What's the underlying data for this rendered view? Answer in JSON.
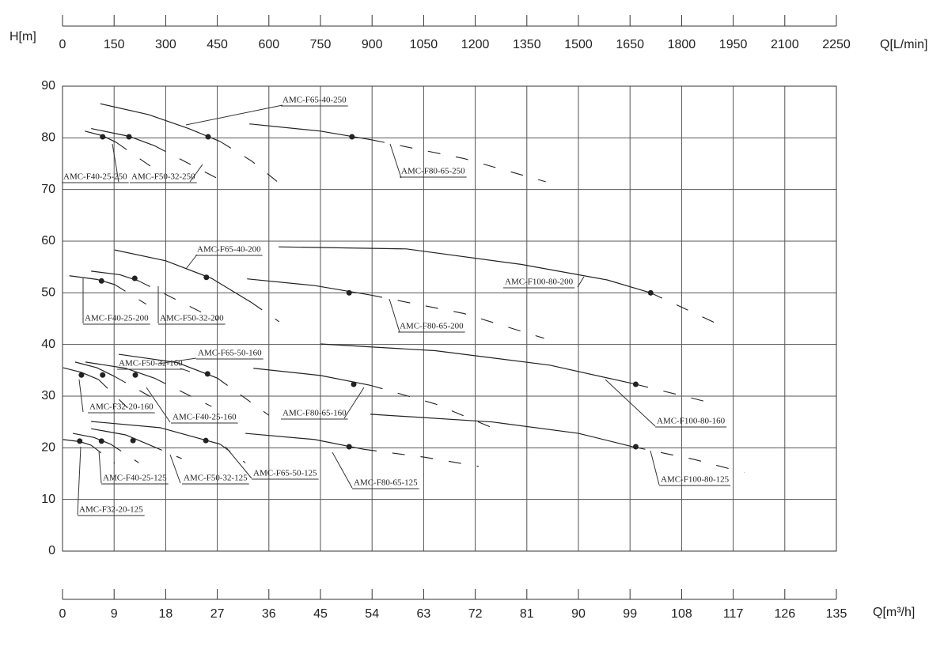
{
  "chart_data": {
    "type": "line",
    "y_label": "H[m]",
    "x_label": "Q[m³/h]",
    "x2_label": "Q[L/min]",
    "xlim": [
      0,
      135
    ],
    "xticks": [
      0,
      9,
      18,
      27,
      36,
      45,
      54,
      63,
      72,
      81,
      90,
      99,
      108,
      117,
      126,
      135
    ],
    "x2lim": [
      0,
      2250
    ],
    "x2ticks": [
      0,
      150,
      300,
      450,
      600,
      750,
      900,
      1050,
      1200,
      1350,
      1500,
      1650,
      1800,
      1950,
      2100,
      2250
    ],
    "ylim": [
      0,
      90
    ],
    "yticks": [
      0,
      10,
      20,
      30,
      40,
      50,
      60,
      70,
      80,
      90
    ],
    "grid": true,
    "color": "#222222",
    "series": [
      {
        "name": "AMC-F40-25-250",
        "x": [
          3.9,
          7,
          9.4
        ],
        "values": [
          81.3,
          80.4,
          79.1
        ],
        "dash_x": [
          9.4,
          16
        ],
        "dash_values": [
          79.1,
          74
        ],
        "duty_x": 7,
        "duty_y": 80.2
      },
      {
        "name": "AMC-F50-32-250",
        "x": [
          5,
          11.6,
          16
        ],
        "values": [
          81.8,
          80.3,
          78.5
        ],
        "dash_x": [
          16,
          29
        ],
        "dash_values": [
          78.5,
          71
        ],
        "duty_x": 11.6,
        "duty_y": 80.2
      },
      {
        "name": "AMC-F65-40-250",
        "x": [
          6.6,
          15,
          22,
          27.5
        ],
        "values": [
          86.6,
          84.5,
          81.8,
          79.3
        ],
        "dash_x": [
          27.5,
          33,
          37.5
        ],
        "dash_values": [
          79.3,
          75.5,
          71.5
        ],
        "duty_x": 25.4,
        "duty_y": 80.2
      },
      {
        "name": "AMC-F80-65-250",
        "x": [
          32.6,
          45,
          54
        ],
        "values": [
          82.7,
          81.3,
          79.6
        ],
        "dash_x": [
          54,
          70,
          84.3
        ],
        "dash_values": [
          79.6,
          76,
          71.5
        ],
        "duty_x": 50.5,
        "duty_y": 80.2
      },
      {
        "name": "AMC-F40-25-200",
        "x": [
          1.2,
          6,
          9.1
        ],
        "values": [
          53.3,
          52.6,
          51.6
        ],
        "dash_x": [
          9.1,
          14.6
        ],
        "dash_values": [
          51.6,
          47.8
        ],
        "duty_x": 6.8,
        "duty_y": 52.3
      },
      {
        "name": "AMC-F50-32-200",
        "x": [
          5,
          10,
          13.3
        ],
        "values": [
          54.2,
          53.5,
          52.3
        ],
        "dash_x": [
          13.3,
          27
        ],
        "dash_values": [
          52.3,
          44.7
        ],
        "duty_x": 12.6,
        "duty_y": 52.8
      },
      {
        "name": "AMC-F65-40-200",
        "x": [
          9.1,
          18,
          26,
          33
        ],
        "values": [
          58.3,
          56.2,
          52.8,
          48.1
        ],
        "dash_x": [
          33,
          37.8
        ],
        "dash_values": [
          48.1,
          44.4
        ],
        "duty_x": 25.1,
        "duty_y": 53
      },
      {
        "name": "AMC-F80-65-200",
        "x": [
          32.2,
          44,
          53.6
        ],
        "values": [
          52.7,
          51.4,
          49.6
        ],
        "dash_x": [
          53.6,
          70,
          84
        ],
        "dash_values": [
          49.6,
          46,
          41.2
        ],
        "duty_x": 50,
        "duty_y": 50
      },
      {
        "name": "AMC-F100-80-200",
        "x": [
          37.7,
          60,
          80,
          95,
          102.6
        ],
        "values": [
          58.9,
          58.5,
          55.5,
          52.5,
          50
        ],
        "dash_x": [
          102.6,
          115
        ],
        "dash_values": [
          50,
          43.6
        ],
        "duty_x": 102.6,
        "duty_y": 50
      },
      {
        "name": "AMC-F32-20-160",
        "x": [
          0.1,
          3.3,
          6.3
        ],
        "values": [
          35.5,
          34.6,
          33.2
        ],
        "dash_x": [
          6.3,
          11.2
        ],
        "dash_values": [
          33.2,
          27.9
        ],
        "duty_x": 3.3,
        "duty_y": 34.1
      },
      {
        "name": "AMC-F40-25-160",
        "x": [
          2.2,
          6,
          9.1
        ],
        "values": [
          36.6,
          35.5,
          33.8
        ],
        "dash_x": [
          9.1,
          17.4
        ],
        "dash_values": [
          33.8,
          28.6
        ],
        "duty_x": 7,
        "duty_y": 34.1
      },
      {
        "name": "AMC-F50-32-160",
        "x": [
          4,
          11,
          16
        ],
        "values": [
          36.6,
          35.4,
          33.5
        ],
        "dash_x": [
          16,
          26
        ],
        "dash_values": [
          33.5,
          28
        ],
        "duty_x": 12.7,
        "duty_y": 34.1
      },
      {
        "name": "AMC-F65-50-160",
        "x": [
          9.8,
          20,
          27
        ],
        "values": [
          38.1,
          36.5,
          33.5
        ],
        "dash_x": [
          27,
          36
        ],
        "dash_values": [
          33.5,
          26.3
        ],
        "duty_x": 25.3,
        "duty_y": 34.3
      },
      {
        "name": "AMC-F80-65-160",
        "x": [
          33.3,
          45,
          53.7
        ],
        "values": [
          35.4,
          34,
          32.1
        ],
        "dash_x": [
          53.7,
          65,
          74.7
        ],
        "dash_values": [
          32.1,
          28.5,
          24
        ],
        "duty_x": 50.8,
        "duty_y": 32.3
      },
      {
        "name": "AMC-F100-80-160",
        "x": [
          45,
          65,
          85,
          100
        ],
        "values": [
          40.1,
          38.8,
          36,
          32.3
        ],
        "dash_x": [
          100,
          112.4
        ],
        "dash_values": [
          32.3,
          28.9
        ],
        "duty_x": 100,
        "duty_y": 32.3
      },
      {
        "name": "AMC-F32-20-125",
        "x": [
          0.1,
          3,
          5
        ],
        "values": [
          21.6,
          21.2,
          20.5
        ],
        "dash_x": [
          5,
          9.1
        ],
        "dash_values": [
          20.5,
          17
        ],
        "duty_x": 3,
        "duty_y": 21.3
      },
      {
        "name": "AMC-F40-25-125",
        "x": [
          1.8,
          5.5,
          8.4
        ],
        "values": [
          22.8,
          22,
          20.7
        ],
        "dash_x": [
          8.4,
          13.3
        ],
        "dash_values": [
          20.7,
          17.1
        ],
        "duty_x": 6.8,
        "duty_y": 21.3
      },
      {
        "name": "AMC-F50-32-125",
        "x": [
          5,
          11,
          15.3
        ],
        "values": [
          23.7,
          22.5,
          20.5
        ],
        "dash_x": [
          15.3,
          20.8
        ],
        "dash_values": [
          20.5,
          17.9
        ],
        "duty_x": 12.3,
        "duty_y": 21.4
      },
      {
        "name": "AMC-F65-50-125",
        "x": [
          5,
          17,
          27.5
        ],
        "values": [
          25.1,
          23.9,
          20.7
        ],
        "dash_x": [
          27.5,
          31.9
        ],
        "dash_values": [
          20.7,
          17.1
        ],
        "duty_x": 25,
        "duty_y": 21.4
      },
      {
        "name": "AMC-F80-65-125",
        "x": [
          31.9,
          44,
          52.6
        ],
        "values": [
          22.8,
          21.6,
          19.7
        ],
        "dash_x": [
          52.6,
          63,
          72.6
        ],
        "dash_values": [
          19.7,
          18.2,
          16.4
        ],
        "duty_x": 50,
        "duty_y": 20.2
      },
      {
        "name": "AMC-F100-80-125",
        "x": [
          53.7,
          75,
          90,
          99.5
        ],
        "values": [
          26.5,
          25,
          22.8,
          20.2
        ],
        "dash_x": [
          99.5,
          110,
          118.9
        ],
        "dash_values": [
          20.2,
          17.8,
          15.2
        ],
        "duty_x": 100,
        "duty_y": 20.2
      }
    ]
  }
}
